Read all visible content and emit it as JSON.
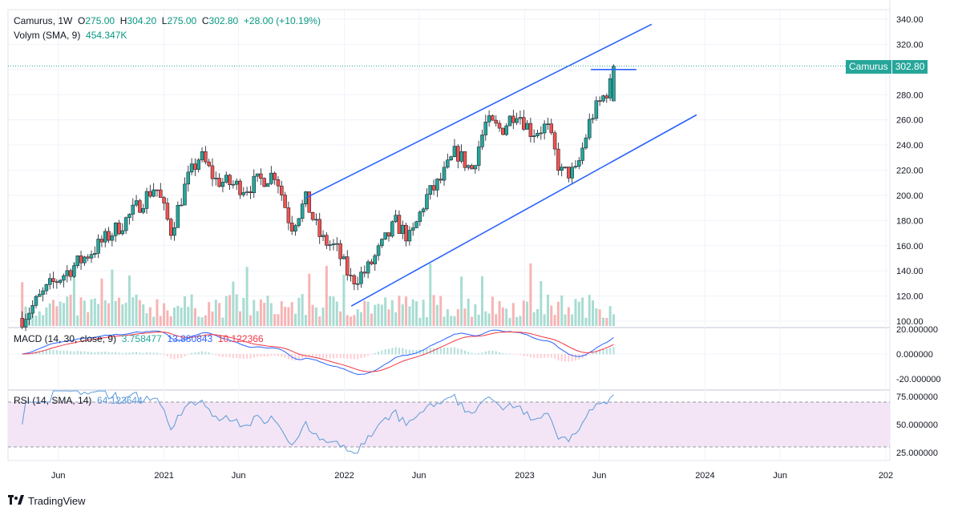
{
  "header": {
    "symbol": "Camurus",
    "interval": "1W",
    "o_label": "O",
    "open": "275.00",
    "h_label": "H",
    "high": "304.20",
    "l_label": "L",
    "low": "275.00",
    "c_label": "C",
    "close": "302.80",
    "change": "+28.00 (+10.19%)"
  },
  "volume_legend": {
    "label": "Volym (SMA, 9)",
    "value": "454.347K"
  },
  "macd_legend": {
    "label": "MACD (14, 30, close, 9)",
    "hist": "3.758477",
    "macd": "13.880843",
    "signal": "10.122366"
  },
  "rsi_legend": {
    "label": "RSI (14, SMA, 14)",
    "value": "64.123644"
  },
  "price_tag": {
    "symbol": "Camurus",
    "value": "302.80"
  },
  "brand": {
    "name": "TradingView"
  },
  "colors": {
    "up": "#26a69a",
    "down": "#ef5350",
    "trendline": "#2962ff",
    "macd": "#2962ff",
    "signal": "#f23645",
    "rsi": "#7e57c2",
    "rsi_band": "#f3e5f5"
  },
  "chart_data": {
    "type": "candlestick",
    "x_axis": {
      "ticks": [
        "Jun",
        "2021",
        "Jun",
        "2022",
        "Jun",
        "2023",
        "Jun",
        "2024",
        "Jun",
        "202"
      ]
    },
    "price_axis": {
      "ticks": [
        "340.00",
        "320.00",
        "300.00",
        "280.00",
        "260.00",
        "240.00",
        "220.00",
        "200.00",
        "180.00",
        "160.00",
        "140.00",
        "120.00",
        "100.00"
      ],
      "range": [
        100,
        340
      ]
    },
    "macd_axis": {
      "ticks": [
        "20.000000",
        "0.000000",
        "-20.000000"
      ]
    },
    "rsi_axis": {
      "ticks": [
        "75.000000",
        "50.000000",
        "25.000000"
      ],
      "band": [
        30,
        70
      ]
    },
    "anchors": [
      [
        "2020-03",
        100
      ],
      [
        "2020-05",
        128
      ],
      [
        "2020-08",
        158
      ],
      [
        "2020-10",
        180
      ],
      [
        "2020-12",
        208
      ],
      [
        "2021-01",
        172
      ],
      [
        "2021-02",
        210
      ],
      [
        "2021-03",
        232
      ],
      [
        "2021-04",
        212
      ],
      [
        "2021-06",
        206
      ],
      [
        "2021-08",
        218
      ],
      [
        "2021-09",
        175
      ],
      [
        "2021-10",
        196
      ],
      [
        "2021-11",
        165
      ],
      [
        "2021-12",
        158
      ],
      [
        "2022-01",
        132
      ],
      [
        "2022-02",
        140
      ],
      [
        "2022-03",
        158
      ],
      [
        "2022-04",
        178
      ],
      [
        "2022-05",
        165
      ],
      [
        "2022-06",
        198
      ],
      [
        "2022-07",
        212
      ],
      [
        "2022-08",
        235
      ],
      [
        "2022-09",
        220
      ],
      [
        "2022-10",
        258
      ],
      [
        "2022-11",
        252
      ],
      [
        "2022-12",
        268
      ],
      [
        "2023-01",
        250
      ],
      [
        "2023-02",
        255
      ],
      [
        "2023-03",
        218
      ],
      [
        "2023-04",
        218
      ],
      [
        "2023-05",
        262
      ],
      [
        "2023-06",
        282
      ],
      [
        "2023-07",
        302.8
      ]
    ],
    "trendlines": [
      {
        "from": [
          "2021-10",
          198
        ],
        "to": [
          "2023-09",
          336
        ]
      },
      {
        "from": [
          "2022-01",
          112
        ],
        "to": [
          "2023-12",
          264
        ]
      },
      {
        "from": [
          "2023-05",
          300
        ],
        "to": [
          "2023-08",
          300
        ]
      }
    ],
    "last_price": 302.8
  }
}
